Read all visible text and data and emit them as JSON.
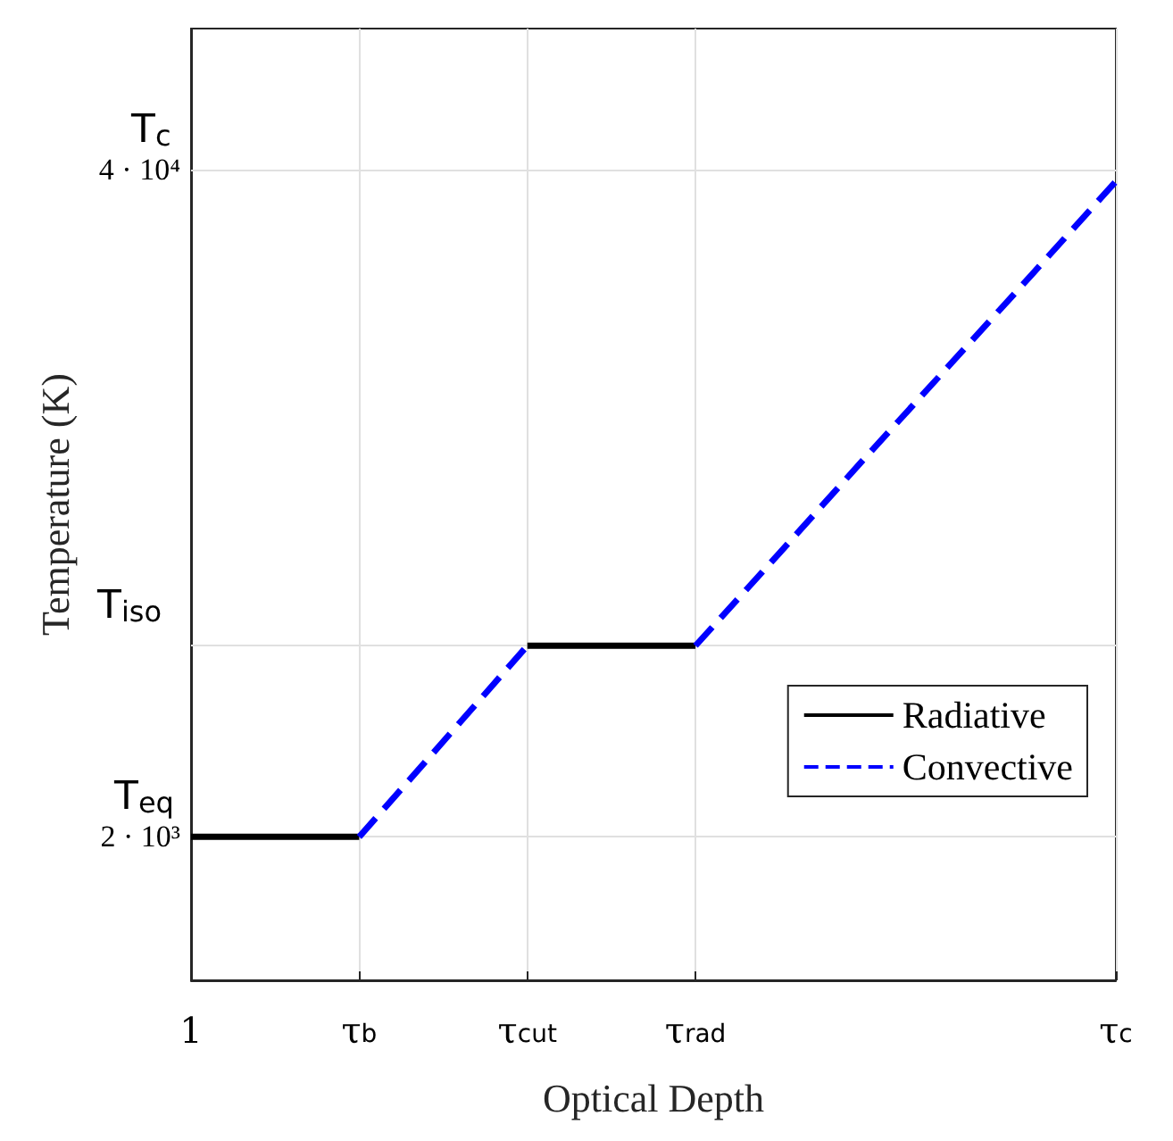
{
  "chart_data": {
    "type": "line",
    "xlabel": "Optical Depth",
    "ylabel": "Temperature (K)",
    "log": "y",
    "grid": true,
    "legend": "right",
    "marker": "none",
    "categories": [
      "1",
      null,
      "τ$_{b}$",
      null,
      "τ$_{cut}$",
      null,
      "τ$_{rad}$",
      null,
      null,
      null,
      null,
      "τ$_{c}$"
    ],
    "ylim": [
      1050,
      75500
    ],
    "yticks": [
      {
        "value": 2000,
        "label": "2 · 10³"
      },
      {
        "value": 40000,
        "label": "4 · 10⁴"
      }
    ],
    "ref_lines": [
      {
        "axis": "y",
        "value": 2000,
        "label": "T$_{eq}$",
        "color": "#e0e0e0"
      },
      {
        "axis": "y",
        "value": 4720,
        "label": "T$_{iso}$",
        "color": "#e0e0e0"
      },
      {
        "axis": "y",
        "value": 40000,
        "label": "T$_{c}$",
        "color": "#e0e0e0"
      }
    ],
    "series": [
      {
        "name": "Radiative",
        "color": "#000000",
        "line_style": "solid",
        "values": [
          2000,
          2000,
          2000,
          null,
          4720,
          4720,
          4720,
          null,
          null,
          null,
          null,
          null
        ]
      },
      {
        "name": "Convective",
        "color": "#0000ff",
        "line_style": "dashed",
        "values": [
          null,
          null,
          2000,
          3070,
          4720,
          null,
          4720,
          7160,
          10900,
          16500,
          25000,
          38000
        ]
      }
    ]
  }
}
